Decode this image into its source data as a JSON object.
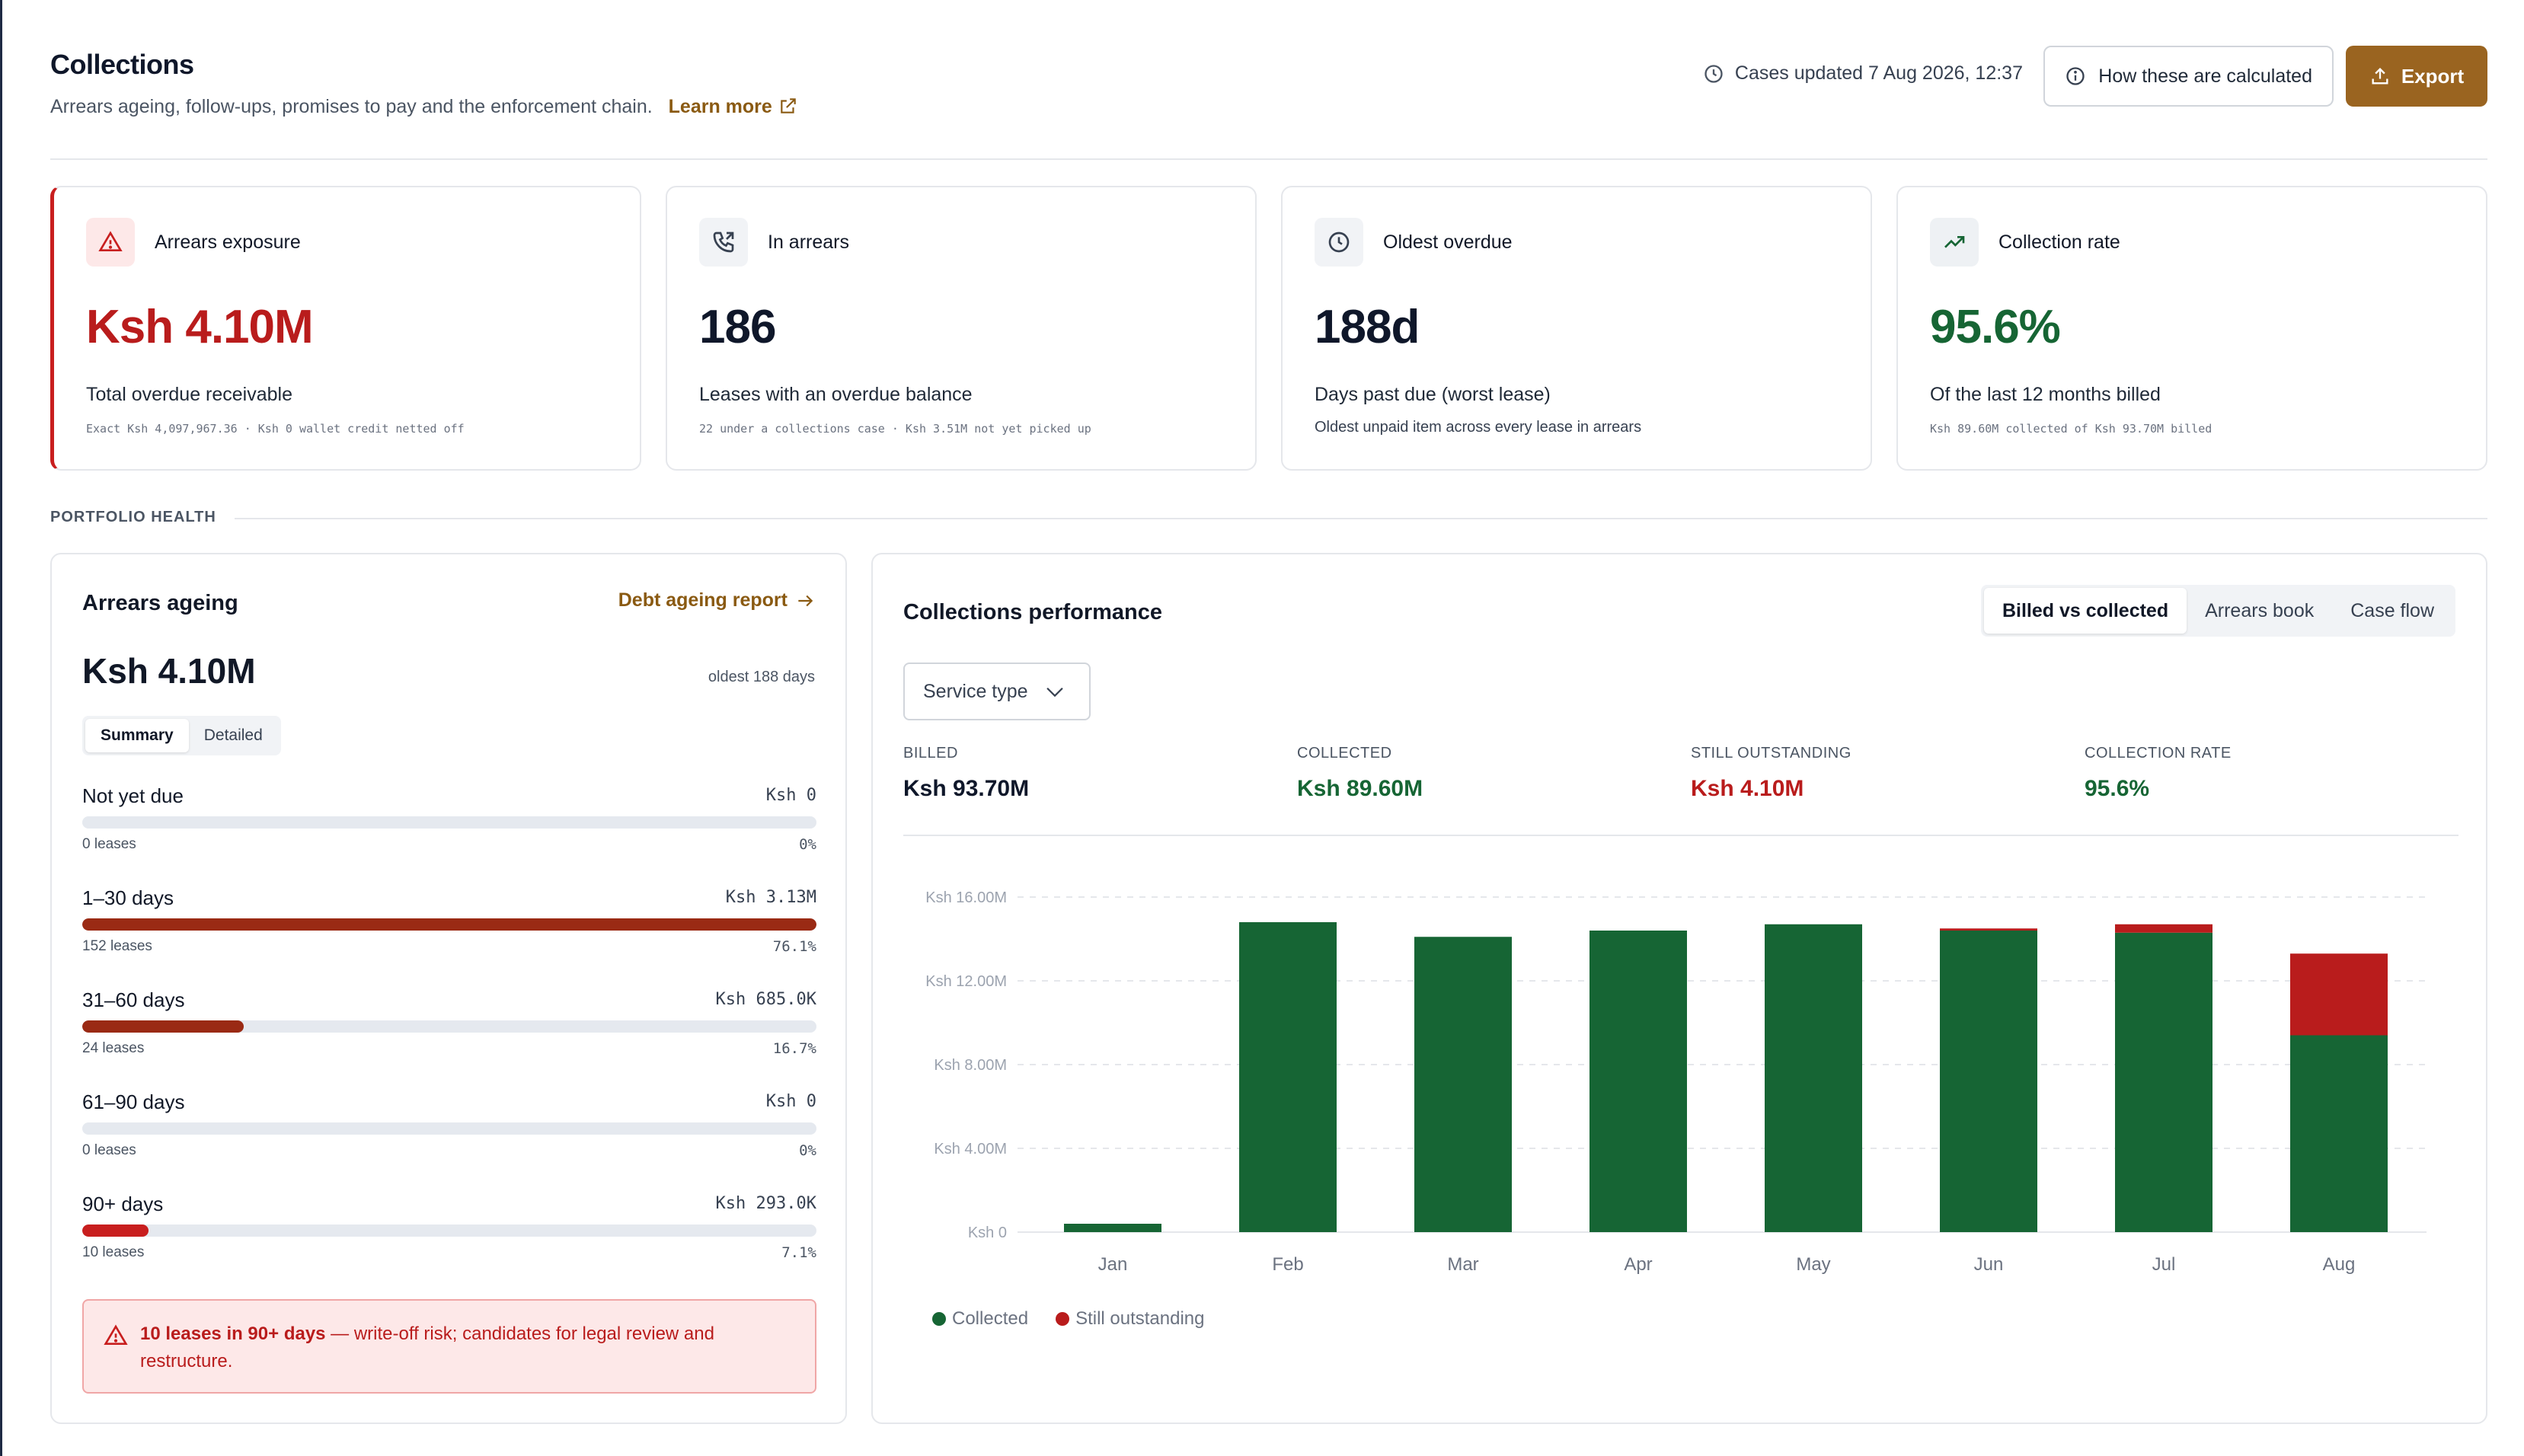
{
  "header": {
    "title": "Collections",
    "subtitle": "Arrears ageing, follow-ups, promises to pay and the enforcement chain.",
    "learn_more": "Learn more",
    "updated": "Cases updated 7 Aug 2026, 12:37",
    "how_label": "How these are calculated",
    "export_label": "Export"
  },
  "kpis": [
    {
      "label": "Arrears exposure",
      "value": "Ksh 4.10M",
      "desc": "Total overdue receivable",
      "foot": "Exact Ksh  4,097,967.36 · Ksh 0 wallet credit netted off",
      "icon": "alert-triangle-icon",
      "color": "#b91c1c"
    },
    {
      "label": "In arrears",
      "value": "186",
      "desc": "Leases with an overdue balance",
      "foot": "22 under a collections case · Ksh 3.51M not yet picked up",
      "icon": "phone-call-icon",
      "color": "#0f172a"
    },
    {
      "label": "Oldest overdue",
      "value": "188d",
      "desc": "Days past due (worst lease)",
      "foot": "Oldest unpaid item across every lease in arrears",
      "icon": "clock-icon",
      "color": "#0f172a"
    },
    {
      "label": "Collection rate",
      "value": "95.6%",
      "desc": "Of the last 12 months billed",
      "foot": "Ksh 89.60M collected of Ksh 93.70M billed",
      "icon": "trending-up-icon",
      "color": "#166534"
    }
  ],
  "section_label": "PORTFOLIO HEALTH",
  "ageing": {
    "title": "Arrears ageing",
    "link": "Debt ageing report",
    "total": "Ksh 4.10M",
    "oldest": "oldest 188 days",
    "seg": [
      "Summary",
      "Detailed"
    ],
    "buckets": [
      {
        "label": "Not yet due",
        "amount": "Ksh 0",
        "leases": "0 leases",
        "pct": "0%",
        "fill": 0,
        "color": "#9a2a14"
      },
      {
        "label": "1–30 days",
        "amount": "Ksh 3.13M",
        "leases": "152 leases",
        "pct": "76.1%",
        "fill": 1.0,
        "color": "#9a2a14"
      },
      {
        "label": "31–60 days",
        "amount": "Ksh 685.0K",
        "leases": "24 leases",
        "pct": "16.7%",
        "fill": 0.22,
        "color": "#9a2a14"
      },
      {
        "label": "61–90 days",
        "amount": "Ksh 0",
        "leases": "0 leases",
        "pct": "0%",
        "fill": 0,
        "color": "#9a2a14"
      },
      {
        "label": "90+ days",
        "amount": "Ksh 293.0K",
        "leases": "10 leases",
        "pct": "7.1%",
        "fill": 0.09,
        "color": "#c81e1e"
      }
    ],
    "alert_strong": "10 leases in 90+ days",
    "alert_text": " — write-off risk; candidates for legal review and restructure."
  },
  "perf": {
    "title": "Collections performance",
    "tabs": [
      "Billed vs collected",
      "Arrears book",
      "Case flow"
    ],
    "service_type": "Service type",
    "stats": [
      {
        "label": "BILLED",
        "value": "Ksh 93.70M",
        "color": "#0f172a"
      },
      {
        "label": "COLLECTED",
        "value": "Ksh 89.60M",
        "color": "#166534"
      },
      {
        "label": "STILL OUTSTANDING",
        "value": "Ksh 4.10M",
        "color": "#b91c1c"
      },
      {
        "label": "COLLECTION RATE",
        "value": "95.6%",
        "color": "#166534"
      }
    ]
  },
  "chart_data": {
    "type": "bar",
    "stacked": true,
    "categories": [
      "Jan",
      "Feb",
      "Mar",
      "Apr",
      "May",
      "Jun",
      "Jul",
      "Aug"
    ],
    "series": [
      {
        "name": "Collected",
        "color": "#166534",
        "values": [
          0.4,
          14.8,
          14.1,
          14.4,
          14.7,
          14.4,
          14.3,
          9.4
        ]
      },
      {
        "name": "Still outstanding",
        "color": "#b91c1c",
        "values": [
          0,
          0,
          0,
          0,
          0,
          0.1,
          0.4,
          3.9
        ]
      }
    ],
    "ylim": [
      0,
      16
    ],
    "yticks": [
      0,
      4,
      8,
      12,
      16
    ],
    "ytick_labels": [
      "Ksh 0",
      "Ksh 4.00M",
      "Ksh 8.00M",
      "Ksh 12.00M",
      "Ksh 16.00M"
    ],
    "grid": true,
    "legend": "bottom-left"
  }
}
